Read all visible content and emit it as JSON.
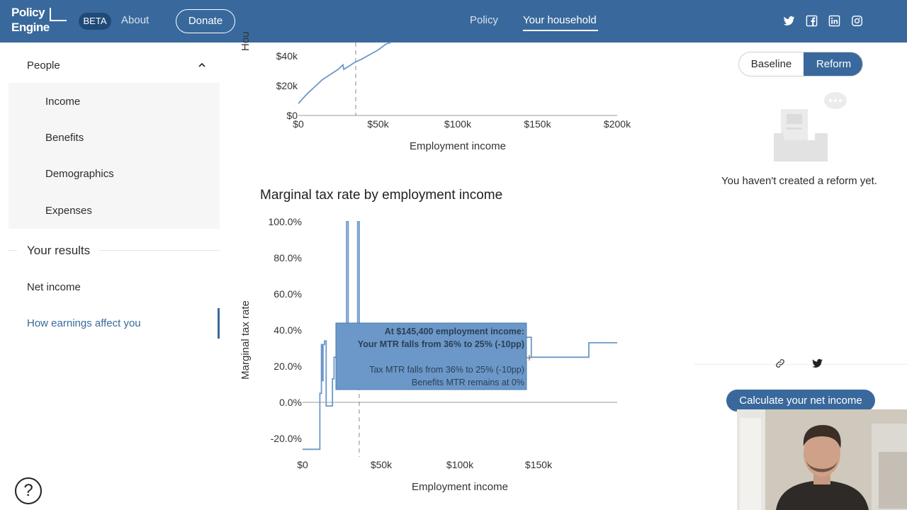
{
  "header": {
    "logo_line1": "Policy",
    "logo_line2": "Engine",
    "beta": "BETA",
    "about": "About",
    "donate": "Donate",
    "nav_policy": "Policy",
    "nav_household": "Your household",
    "social_icons": [
      "twitter-icon",
      "facebook-icon",
      "linkedin-icon",
      "instagram-icon"
    ]
  },
  "sidebar": {
    "people": "People",
    "sub_items": [
      "Income",
      "Benefits",
      "Demographics",
      "Expenses"
    ],
    "results": "Your results",
    "net_income": "Net income",
    "earnings": "How earnings affect you"
  },
  "chart_data": [
    {
      "type": "line",
      "title": "",
      "xlabel": "Employment income",
      "ylabel": "Hou",
      "x_ticks": [
        "$0",
        "$50k",
        "$100k",
        "$150k",
        "$200k"
      ],
      "y_ticks": [
        "$0",
        "$20k",
        "$40k"
      ],
      "xlim": [
        0,
        200000
      ],
      "ylim": [
        0,
        50000
      ],
      "series": [
        {
          "x": [
            0,
            5000,
            10000,
            15000,
            20000,
            25000,
            28000,
            28500,
            33000,
            35000,
            40000,
            45000,
            50000,
            55000,
            58000
          ],
          "y": [
            8000,
            14000,
            19000,
            24000,
            27500,
            31000,
            34000,
            31000,
            34000,
            35500,
            38000,
            41000,
            44000,
            48000,
            51000
          ]
        }
      ],
      "marker_x": 36000
    },
    {
      "type": "line",
      "title": "Marginal tax rate by employment income",
      "xlabel": "Employment income",
      "ylabel": "Marginal tax rate",
      "x_ticks": [
        "$0",
        "$50k",
        "$100k",
        "$150k"
      ],
      "y_ticks": [
        "100.0%",
        "80.0%",
        "60.0%",
        "40.0%",
        "20.0%",
        "0.0%",
        "-20.0%"
      ],
      "xlim": [
        0,
        200000
      ],
      "ylim": [
        -0.27,
        1.0
      ],
      "series": [
        {
          "x": [
            0,
            11000,
            11000,
            12000,
            12000,
            12500,
            12500,
            13000,
            13000,
            14000,
            14000,
            15000,
            15000,
            16000,
            16000,
            19000,
            19000,
            20000,
            20000,
            28000,
            28000,
            29000,
            29000,
            35000,
            35000,
            36000,
            36000,
            37000,
            37000,
            145400,
            145400,
            182000,
            182000,
            200000
          ],
          "y": [
            -0.26,
            -0.26,
            0.05,
            0.05,
            0.32,
            0.32,
            0.12,
            0.12,
            0.32,
            0.32,
            0.34,
            0.34,
            -0.02,
            -0.02,
            -0.02,
            -0.02,
            0.13,
            0.13,
            0.25,
            0.25,
            1.0,
            1.0,
            0.3,
            0.3,
            1.0,
            1.0,
            0.3,
            0.3,
            0.36,
            0.36,
            0.25,
            0.25,
            0.33,
            0.33
          ]
        }
      ],
      "marker_x": 36000,
      "tooltip": {
        "line1": "At $145,400 employment income:",
        "line2": "Your MTR falls from 36% to 25% (-10pp)",
        "line3": "Tax MTR falls from 36% to 25% (-10pp)",
        "line4": "Benefits MTR remains at 0%"
      }
    }
  ],
  "reform_panel": {
    "baseline": "Baseline",
    "reform": "Reform",
    "empty_message": "You haven't created a reform yet.",
    "calculate": "Calculate your net income"
  },
  "colors": {
    "brand": "#39699c",
    "line": "#5b8ec4",
    "tooltip_bg": "#5b8ec4"
  }
}
